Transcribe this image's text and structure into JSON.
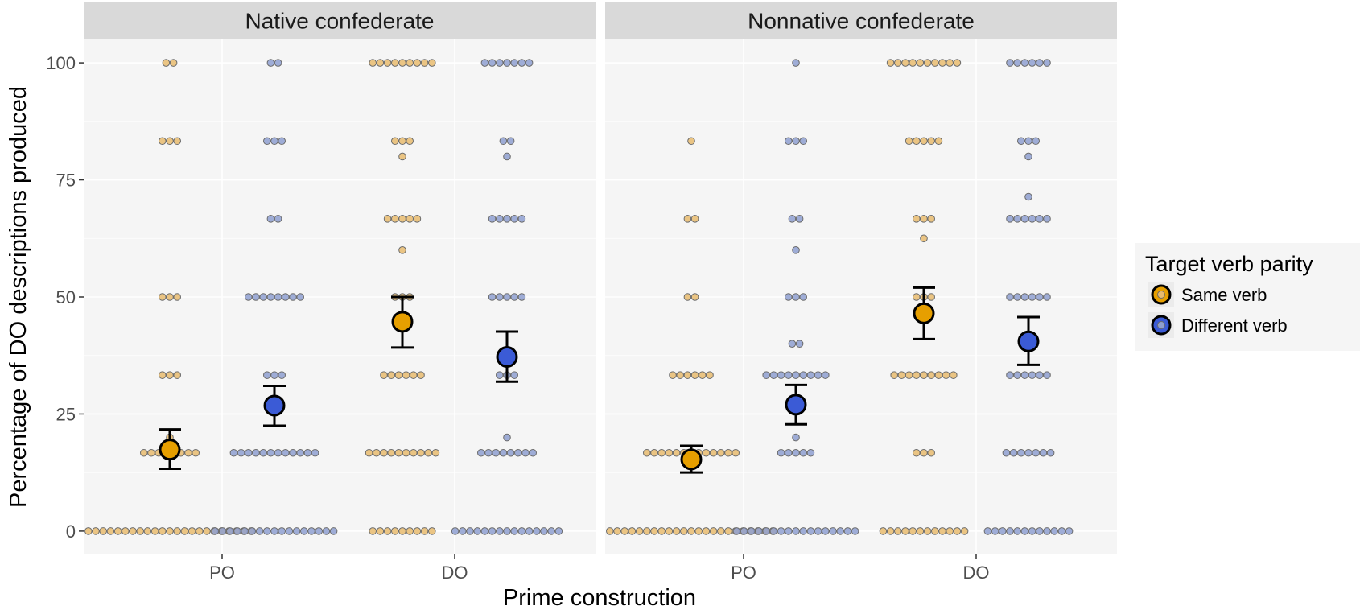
{
  "chart_data": {
    "type": "scatter",
    "subtype": "dotplot with mean and error bars",
    "xlabel": "Prime construction",
    "ylabel": "Percentage of DO descriptions produced",
    "ylim": [
      -5,
      105
    ],
    "y_ticks": [
      0,
      25,
      50,
      75,
      100
    ],
    "categories": [
      "PO",
      "DO"
    ],
    "grid": true,
    "legend": {
      "title": "Target verb parity",
      "placement": "right",
      "entries": [
        "Same verb",
        "Different verb"
      ]
    },
    "colors": {
      "same_fill": "#e69f00",
      "same_dot": "#e8bb6e",
      "different_fill": "#3b5bd6",
      "different_dot": "#8e9fd0",
      "panel_bg": "#f5f5f5",
      "strip_bg": "#d9d9d9"
    },
    "panels": [
      {
        "title": "Native confederate",
        "series": [
          {
            "name": "Same verb",
            "groups": [
              {
                "x": "PO",
                "mean": 17.4,
                "err_low": 13.3,
                "err_high": 21.7,
                "dots": [
                  {
                    "y": 100,
                    "n": 2
                  },
                  {
                    "y": 83.3,
                    "n": 3
                  },
                  {
                    "y": 50,
                    "n": 3
                  },
                  {
                    "y": 33.3,
                    "n": 3
                  },
                  {
                    "y": 20,
                    "n": 1
                  },
                  {
                    "y": 16.7,
                    "n": 8
                  },
                  {
                    "y": 0,
                    "n": 23
                  }
                ]
              },
              {
                "x": "DO",
                "mean": 44.7,
                "err_low": 39.2,
                "err_high": 50.0,
                "dots": [
                  {
                    "y": 100,
                    "n": 9
                  },
                  {
                    "y": 83.3,
                    "n": 3
                  },
                  {
                    "y": 80,
                    "n": 1
                  },
                  {
                    "y": 66.7,
                    "n": 5
                  },
                  {
                    "y": 60,
                    "n": 1
                  },
                  {
                    "y": 50,
                    "n": 3
                  },
                  {
                    "y": 33.3,
                    "n": 6
                  },
                  {
                    "y": 16.7,
                    "n": 10
                  },
                  {
                    "y": 0,
                    "n": 9
                  }
                ]
              }
            ]
          },
          {
            "name": "Different verb",
            "groups": [
              {
                "x": "PO",
                "mean": 26.8,
                "err_low": 22.5,
                "err_high": 31.0,
                "dots": [
                  {
                    "y": 100,
                    "n": 2
                  },
                  {
                    "y": 83.3,
                    "n": 3
                  },
                  {
                    "y": 66.7,
                    "n": 2
                  },
                  {
                    "y": 50,
                    "n": 8
                  },
                  {
                    "y": 33.3,
                    "n": 3
                  },
                  {
                    "y": 16.7,
                    "n": 12
                  },
                  {
                    "y": 0,
                    "n": 17
                  }
                ]
              },
              {
                "x": "DO",
                "mean": 37.2,
                "err_low": 31.9,
                "err_high": 42.6,
                "dots": [
                  {
                    "y": 100,
                    "n": 7
                  },
                  {
                    "y": 83.3,
                    "n": 2
                  },
                  {
                    "y": 80,
                    "n": 1
                  },
                  {
                    "y": 66.7,
                    "n": 5
                  },
                  {
                    "y": 50,
                    "n": 5
                  },
                  {
                    "y": 33.3,
                    "n": 3
                  },
                  {
                    "y": 20,
                    "n": 1
                  },
                  {
                    "y": 16.7,
                    "n": 8
                  },
                  {
                    "y": 0,
                    "n": 15
                  }
                ]
              }
            ]
          }
        ]
      },
      {
        "title": "Nonnative confederate",
        "series": [
          {
            "name": "Same verb",
            "groups": [
              {
                "x": "PO",
                "mean": 15.3,
                "err_low": 12.5,
                "err_high": 18.2,
                "dots": [
                  {
                    "y": 83.3,
                    "n": 1
                  },
                  {
                    "y": 66.7,
                    "n": 2
                  },
                  {
                    "y": 50,
                    "n": 2
                  },
                  {
                    "y": 33.3,
                    "n": 6
                  },
                  {
                    "y": 16.7,
                    "n": 13
                  },
                  {
                    "y": 0,
                    "n": 23
                  }
                ]
              },
              {
                "x": "DO",
                "mean": 46.5,
                "err_low": 41.0,
                "err_high": 52.0,
                "dots": [
                  {
                    "y": 100,
                    "n": 10
                  },
                  {
                    "y": 83.3,
                    "n": 5
                  },
                  {
                    "y": 66.7,
                    "n": 3
                  },
                  {
                    "y": 62.5,
                    "n": 1
                  },
                  {
                    "y": 50,
                    "n": 3
                  },
                  {
                    "y": 33.3,
                    "n": 9
                  },
                  {
                    "y": 16.7,
                    "n": 3
                  },
                  {
                    "y": 0,
                    "n": 12
                  }
                ]
              }
            ]
          },
          {
            "name": "Different verb",
            "groups": [
              {
                "x": "PO",
                "mean": 27.0,
                "err_low": 22.8,
                "err_high": 31.2,
                "dots": [
                  {
                    "y": 100,
                    "n": 1
                  },
                  {
                    "y": 83.3,
                    "n": 3
                  },
                  {
                    "y": 66.7,
                    "n": 2
                  },
                  {
                    "y": 60,
                    "n": 1
                  },
                  {
                    "y": 50,
                    "n": 3
                  },
                  {
                    "y": 40,
                    "n": 2
                  },
                  {
                    "y": 33.3,
                    "n": 9
                  },
                  {
                    "y": 20,
                    "n": 1
                  },
                  {
                    "y": 16.7,
                    "n": 5
                  },
                  {
                    "y": 0,
                    "n": 17
                  }
                ]
              },
              {
                "x": "DO",
                "mean": 40.5,
                "err_low": 35.5,
                "err_high": 45.7,
                "dots": [
                  {
                    "y": 100,
                    "n": 6
                  },
                  {
                    "y": 83.3,
                    "n": 3
                  },
                  {
                    "y": 80,
                    "n": 1
                  },
                  {
                    "y": 71.4,
                    "n": 1
                  },
                  {
                    "y": 66.7,
                    "n": 6
                  },
                  {
                    "y": 50,
                    "n": 6
                  },
                  {
                    "y": 40,
                    "n": 1
                  },
                  {
                    "y": 33.3,
                    "n": 6
                  },
                  {
                    "y": 16.7,
                    "n": 7
                  },
                  {
                    "y": 0,
                    "n": 12
                  }
                ]
              }
            ]
          }
        ]
      }
    ]
  }
}
